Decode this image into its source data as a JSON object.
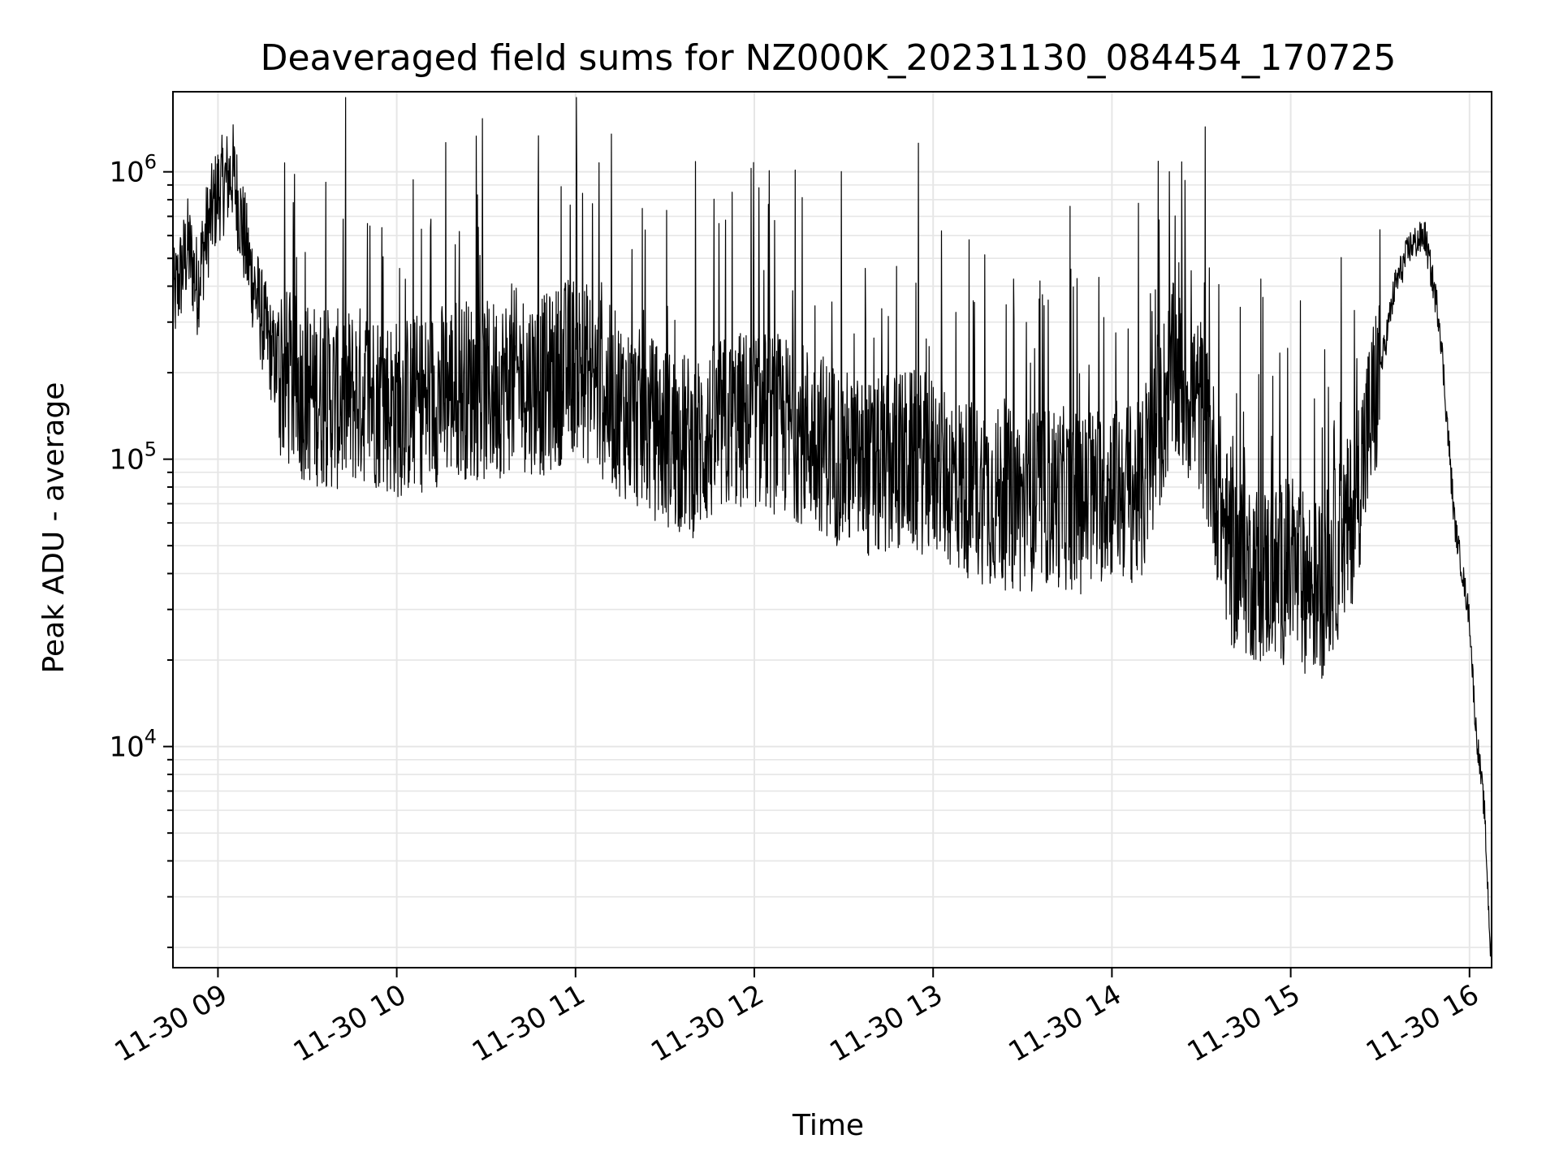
{
  "chart_data": {
    "type": "line",
    "title": "Deaveraged field sums for NZ000K_20231130_084454_170725",
    "xlabel": "Time",
    "ylabel": "Peak ADU - average",
    "yscale": "log",
    "grid": true,
    "line_color": "#000000",
    "grid_color": "#e6e6e6",
    "x_range": [
      "2023-11-30 08:44:54",
      "2023-11-30 16:07:25"
    ],
    "ylim": [
      1700,
      1900000
    ],
    "x_tick_labels": [
      "11-30 09",
      "11-30 10",
      "11-30 11",
      "11-30 12",
      "11-30 13",
      "11-30 14",
      "11-30 15",
      "11-30 16"
    ],
    "x_tick_times": [
      "2023-11-30 09:00",
      "2023-11-30 10:00",
      "2023-11-30 11:00",
      "2023-11-30 12:00",
      "2023-11-30 13:00",
      "2023-11-30 14:00",
      "2023-11-30 15:00",
      "2023-11-30 16:00"
    ],
    "y_major_ticks": [
      {
        "value": 10000,
        "base": "10",
        "exp": "4"
      },
      {
        "value": 100000,
        "base": "10",
        "exp": "5"
      },
      {
        "value": 1000000,
        "base": "10",
        "exp": "6"
      }
    ],
    "series": [
      {
        "x": [
          "2023-11-30 08:45",
          "2023-11-30 08:50",
          "2023-11-30 08:53",
          "2023-11-30 08:56",
          "2023-11-30 09:00",
          "2023-11-30 09:05",
          "2023-11-30 09:10",
          "2023-11-30 09:15",
          "2023-11-30 09:20",
          "2023-11-30 09:30",
          "2023-11-30 09:40",
          "2023-11-30 09:50",
          "2023-11-30 10:00",
          "2023-11-30 10:10",
          "2023-11-30 10:20",
          "2023-11-30 10:30",
          "2023-11-30 10:40",
          "2023-11-30 10:50",
          "2023-11-30 11:00",
          "2023-11-30 11:10",
          "2023-11-30 11:20",
          "2023-11-30 11:30",
          "2023-11-30 11:40",
          "2023-11-30 11:50",
          "2023-11-30 12:00",
          "2023-11-30 12:10",
          "2023-11-30 12:20",
          "2023-11-30 12:30",
          "2023-11-30 12:40",
          "2023-11-30 12:50",
          "2023-11-30 13:00",
          "2023-11-30 13:10",
          "2023-11-30 13:20",
          "2023-11-30 13:30",
          "2023-11-30 13:40",
          "2023-11-30 13:50",
          "2023-11-30 14:00",
          "2023-11-30 14:10",
          "2023-11-30 14:20",
          "2023-11-30 14:30",
          "2023-11-30 14:40",
          "2023-11-30 14:50",
          "2023-11-30 15:00",
          "2023-11-30 15:10",
          "2023-11-30 15:20",
          "2023-11-30 15:30",
          "2023-11-30 15:35",
          "2023-11-30 15:40",
          "2023-11-30 15:45",
          "2023-11-30 15:50",
          "2023-11-30 15:55",
          "2023-11-30 16:00",
          "2023-11-30 16:02",
          "2023-11-30 16:05",
          "2023-11-30 16:07"
        ],
        "values": [
          350000,
          550000,
          400000,
          600000,
          850000,
          1000000,
          500000,
          300000,
          200000,
          170000,
          160000,
          170000,
          150000,
          160000,
          180000,
          170000,
          190000,
          180000,
          220000,
          170000,
          140000,
          120000,
          110000,
          130000,
          140000,
          130000,
          120000,
          100000,
          90000,
          100000,
          95000,
          80000,
          75000,
          70000,
          75000,
          70000,
          80000,
          75000,
          200000,
          150000,
          45000,
          40000,
          40000,
          35000,
          60000,
          200000,
          400000,
          550000,
          600000,
          300000,
          60000,
          28000,
          12000,
          6000,
          2000
        ]
      }
    ]
  }
}
